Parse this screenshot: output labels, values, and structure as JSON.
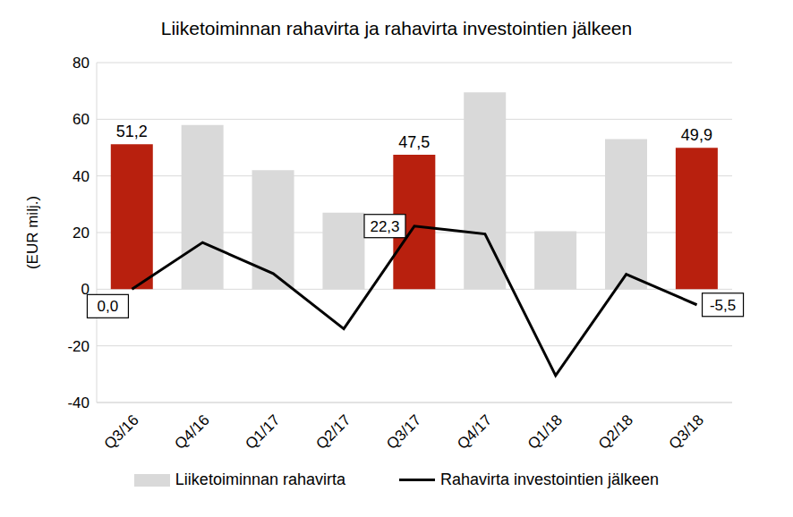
{
  "chart_data": {
    "type": "bar",
    "title": "Liiketoiminnan rahavirta ja rahavirta investointien jälkeen",
    "categories": [
      "Q3/16",
      "Q4/16",
      "Q1/17",
      "Q2/17",
      "Q3/17",
      "Q4/17",
      "Q1/18",
      "Q2/18",
      "Q3/18"
    ],
    "y_label": "(EUR milj.)",
    "ylim": [
      -40,
      80
    ],
    "yticks": [
      -40,
      -20,
      0,
      20,
      40,
      60,
      80
    ],
    "grid": true,
    "legend": "bottom",
    "data_labels": true,
    "series": [
      {
        "name": "Liiketoiminnan rahavirta",
        "type": "bar",
        "color": "#d9d9d9",
        "colors": [
          "#b8200e",
          "#d9d9d9",
          "#d9d9d9",
          "#d9d9d9",
          "#b8200e",
          "#d9d9d9",
          "#d9d9d9",
          "#d9d9d9",
          "#b8200e"
        ],
        "values": [
          51.2,
          58,
          42,
          27,
          47.5,
          69.5,
          20.5,
          53,
          49.9
        ],
        "value_labels": [
          "51,2",
          null,
          null,
          null,
          "47,5",
          null,
          null,
          null,
          "49,9"
        ]
      },
      {
        "name": "Rahavirta investointien jälkeen",
        "type": "line",
        "color": "#000000",
        "values": [
          0,
          16.5,
          5.5,
          -14,
          22.3,
          19.5,
          -30.5,
          5.3,
          -5.5
        ],
        "value_labels": [
          "0,0",
          null,
          null,
          null,
          "22,3",
          null,
          null,
          null,
          "-5,5"
        ]
      }
    ]
  }
}
